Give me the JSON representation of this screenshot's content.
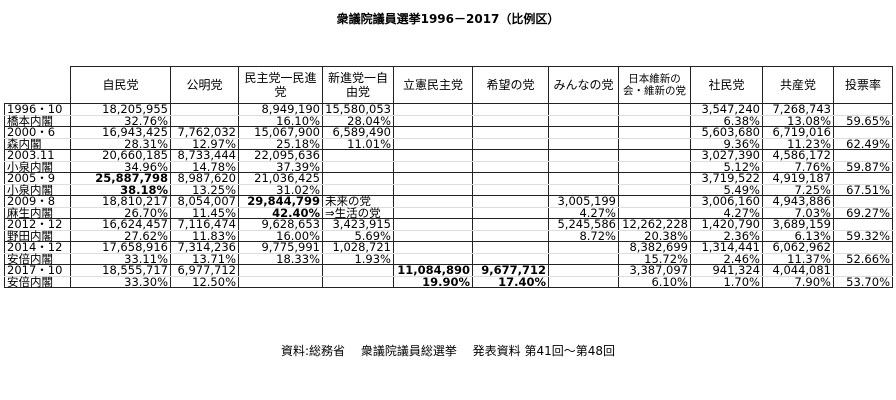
{
  "title": "衆議院議員選挙1996－2017（比例区）",
  "headers": [
    "自民党",
    "公明党",
    "民主党一民進党",
    "新進党一自由党",
    "立憲民主党",
    "希望の党",
    "みんなの党",
    "日本維新の会・維新の党",
    "社民党",
    "共産党",
    "投票率"
  ],
  "rows": [
    {
      "date": "1996・10",
      "cabinet": "橋本内閣",
      "votes": [
        "18,205,955",
        "",
        "8,949,190",
        "15,580,053",
        "",
        "",
        "",
        "",
        "3,547,240",
        "7,268,743"
      ],
      "pcts": [
        "32.76%",
        "",
        "16.10%",
        "28.04%",
        "",
        "",
        "",
        "",
        "6.38%",
        "13.08%"
      ],
      "turnout": "59.65%",
      "bold": []
    },
    {
      "date": "2000・6",
      "cabinet": "森内閣",
      "votes": [
        "16,943,425",
        "7,762,032",
        "15,067,900",
        "6,589,490",
        "",
        "",
        "",
        "",
        "5,603,680",
        "6,719,016"
      ],
      "pcts": [
        "28.31%",
        "12.97%",
        "25.18%",
        "11.01%",
        "",
        "",
        "",
        "",
        "9.36%",
        "11.23%"
      ],
      "turnout": "62.49%",
      "bold": []
    },
    {
      "date": "2003.11",
      "cabinet": "小泉内閣",
      "votes": [
        "20,660,185",
        "8,733,444",
        "22,095,636",
        "",
        "",
        "",
        "",
        "",
        "3,027,390",
        "4,586,172"
      ],
      "pcts": [
        "34.96%",
        "14.78%",
        "37.39%",
        "",
        "",
        "",
        "",
        "",
        "5.12%",
        "7.76%"
      ],
      "turnout": "59.87%",
      "bold": []
    },
    {
      "date": "2005・9",
      "cabinet": "小泉内閣",
      "votes": [
        "25,887,798",
        "8,987,620",
        "21,036,425",
        "",
        "",
        "",
        "",
        "",
        "3,719,522",
        "4,919,187"
      ],
      "pcts": [
        "38.18%",
        "13.25%",
        "31.02%",
        "",
        "",
        "",
        "",
        "",
        "5.49%",
        "7.25%"
      ],
      "turnout": "67.51%",
      "bold": [
        0
      ]
    },
    {
      "date": "2009・8",
      "cabinet": "麻生内閣",
      "votes": [
        "18,810,217",
        "8,054,007",
        "29,844,799",
        "未来の党",
        "",
        "",
        "3,005,199",
        "",
        "3,006,160",
        "4,943,886"
      ],
      "pcts": [
        "26.70%",
        "11.45%",
        "42.40%",
        "⇒生活の党",
        "",
        "",
        "4.27%",
        "",
        "4.27%",
        "7.03%"
      ],
      "turnout": "69.27%",
      "bold": [
        2
      ],
      "notes": [
        3
      ]
    },
    {
      "date": "2012・12",
      "cabinet": "野田内閣",
      "votes": [
        "16,624,457",
        "7,116,474",
        "9,628,653",
        "3,423,915",
        "",
        "",
        "5,245,586",
        "12,262,228",
        "1,420,790",
        "3,689,159"
      ],
      "pcts": [
        "27.62%",
        "11.83%",
        "16.00%",
        "5.69%",
        "",
        "",
        "8.72%",
        "20.38%",
        "2.36%",
        "6.13%"
      ],
      "turnout": "59.32%",
      "bold": []
    },
    {
      "date": "2014・12",
      "cabinet": "安倍内閣",
      "votes": [
        "17,658,916",
        "7,314,236",
        "9,775,991",
        "1,028,721",
        "",
        "",
        "",
        "8,382,699",
        "1,314,441",
        "6,062,962"
      ],
      "pcts": [
        "33.11%",
        "13.71%",
        "18.33%",
        "1.93%",
        "",
        "",
        "",
        "15.72%",
        "2.46%",
        "11.37%"
      ],
      "turnout": "52.66%",
      "bold": []
    },
    {
      "date": "2017・10",
      "cabinet": "安倍内閣",
      "votes": [
        "18,555,717",
        "6,977,712",
        "",
        "",
        "11,084,890",
        "9,677,712",
        "",
        "3,387,097",
        "941,324",
        "4,044,081"
      ],
      "pcts": [
        "33.30%",
        "12.50%",
        "",
        "",
        "19.90%",
        "17.40%",
        "",
        "6.10%",
        "1.70%",
        "7.90%"
      ],
      "turnout": "53.70%",
      "bold": [
        4,
        5
      ]
    }
  ],
  "footer": "資料:総務省　 衆議院議員総選挙　 発表資料  第41回～第48回"
}
